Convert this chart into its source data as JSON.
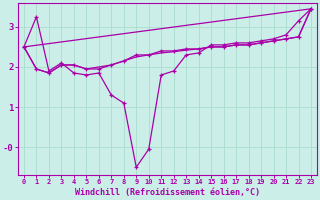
{
  "background_color": "#cceee8",
  "grid_color": "#aaddcc",
  "line_color": "#aa00aa",
  "xlabel": "Windchill (Refroidissement éolien,°C)",
  "xlim": [
    -0.5,
    23.5
  ],
  "ylim": [
    -0.7,
    3.6
  ],
  "yticks": [
    0,
    1,
    2,
    3
  ],
  "ytick_labels": [
    "-0",
    "1",
    "2",
    "3"
  ],
  "xticks": [
    0,
    1,
    2,
    3,
    4,
    5,
    6,
    7,
    8,
    9,
    10,
    11,
    12,
    13,
    14,
    15,
    16,
    17,
    18,
    19,
    20,
    21,
    22,
    23
  ],
  "line1_x": [
    0,
    1,
    2,
    3,
    4,
    5,
    6,
    7,
    8,
    9,
    10,
    11,
    12,
    13,
    14,
    15,
    16,
    17,
    18,
    19,
    20,
    21,
    22,
    23
  ],
  "line1_y": [
    2.5,
    3.25,
    1.9,
    2.1,
    1.85,
    1.8,
    1.85,
    1.3,
    1.1,
    -0.5,
    -0.05,
    1.8,
    1.9,
    2.3,
    2.35,
    2.55,
    2.55,
    2.6,
    2.6,
    2.65,
    2.7,
    2.8,
    3.15,
    3.45
  ],
  "line2_x": [
    0,
    1,
    2,
    3,
    4,
    5,
    6,
    7,
    8,
    9,
    10,
    11,
    12,
    13,
    14,
    15,
    16,
    17,
    18,
    19,
    20,
    21,
    22,
    23
  ],
  "line2_y": [
    2.5,
    1.95,
    1.85,
    2.05,
    2.05,
    1.95,
    1.95,
    2.05,
    2.15,
    2.3,
    2.3,
    2.4,
    2.4,
    2.45,
    2.45,
    2.5,
    2.5,
    2.55,
    2.55,
    2.6,
    2.65,
    2.7,
    2.75,
    3.45
  ],
  "line3_x": [
    0,
    23
  ],
  "line3_y": [
    2.5,
    3.45
  ],
  "line4_x": [
    0,
    1,
    2,
    3,
    4,
    5,
    6,
    7,
    8,
    9,
    10,
    11,
    12,
    13,
    14,
    15,
    16,
    17,
    18,
    19,
    20,
    21,
    22,
    23
  ],
  "line4_y": [
    2.5,
    1.95,
    1.85,
    2.05,
    2.05,
    1.95,
    2.0,
    2.05,
    2.15,
    2.25,
    2.3,
    2.35,
    2.38,
    2.42,
    2.45,
    2.5,
    2.5,
    2.55,
    2.55,
    2.6,
    2.65,
    2.7,
    2.75,
    3.45
  ]
}
